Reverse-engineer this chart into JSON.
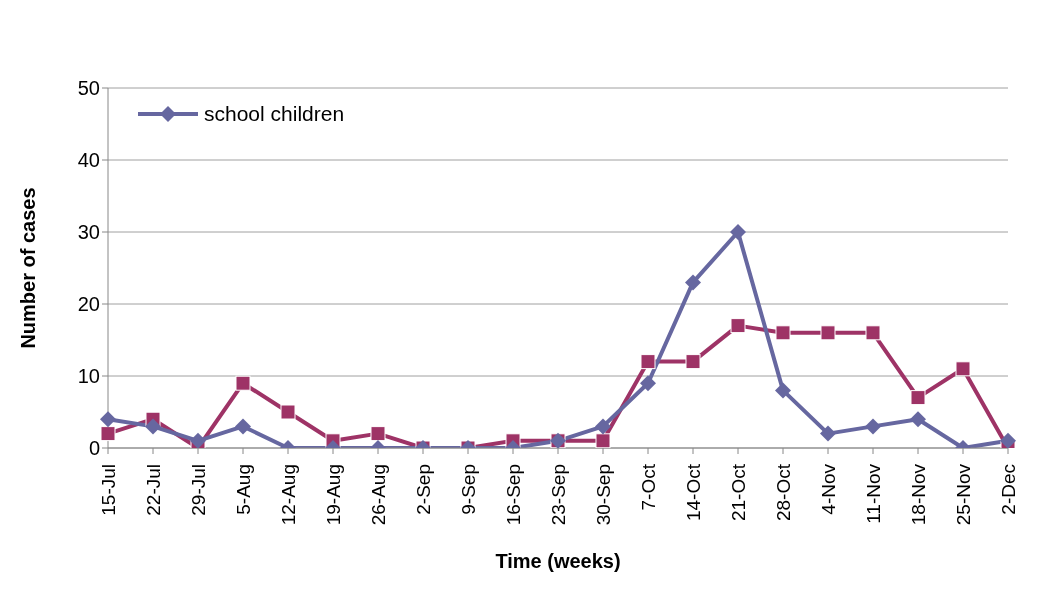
{
  "chart_data": {
    "type": "line",
    "xlabel": "Time (weeks)",
    "ylabel": "Number of cases",
    "categories": [
      "15-Jul",
      "22-Jul",
      "29-Jul",
      "5-Aug",
      "12-Aug",
      "19-Aug",
      "26-Aug",
      "2-Sep",
      "9-Sep",
      "16-Sep",
      "23-Sep",
      "30-Sep",
      "7-Oct",
      "14-Oct",
      "21-Oct",
      "28-Oct",
      "4-Nov",
      "11-Nov",
      "18-Nov",
      "25-Nov",
      "2-Dec"
    ],
    "series": [
      {
        "name": "school children",
        "color": "#6667a0",
        "marker": "diamond",
        "values": [
          4,
          3,
          1,
          3,
          0,
          0,
          0,
          0,
          0,
          0,
          1,
          3,
          9,
          23,
          30,
          8,
          2,
          3,
          4,
          0,
          1
        ]
      },
      {
        "color": "#9e3366",
        "marker": "square",
        "values": [
          2,
          4,
          0,
          9,
          5,
          1,
          2,
          0,
          0,
          1,
          1,
          1,
          12,
          12,
          17,
          16,
          16,
          16,
          7,
          11,
          0
        ]
      }
    ],
    "ylim": [
      0,
      50
    ],
    "yticks": [
      0,
      10,
      20,
      30,
      40,
      50
    ],
    "grid": "y",
    "legend": "top left"
  }
}
